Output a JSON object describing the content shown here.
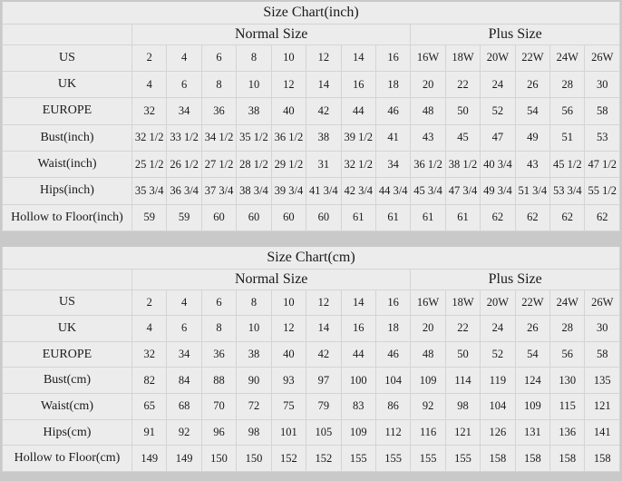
{
  "charts": [
    {
      "id": "chart-inch",
      "title": "Size Chart(inch)",
      "groups": [
        "Normal Size",
        "Plus Size"
      ],
      "rows": [
        {
          "label": "US",
          "values": [
            "2",
            "4",
            "6",
            "8",
            "10",
            "12",
            "14",
            "16",
            "16W",
            "18W",
            "20W",
            "22W",
            "24W",
            "26W"
          ]
        },
        {
          "label": "UK",
          "values": [
            "4",
            "6",
            "8",
            "10",
            "12",
            "14",
            "16",
            "18",
            "20",
            "22",
            "24",
            "26",
            "28",
            "30"
          ]
        },
        {
          "label": "EUROPE",
          "values": [
            "32",
            "34",
            "36",
            "38",
            "40",
            "42",
            "44",
            "46",
            "48",
            "50",
            "52",
            "54",
            "56",
            "58"
          ]
        },
        {
          "label": "Bust(inch)",
          "values": [
            "32 1/2",
            "33 1/2",
            "34 1/2",
            "35 1/2",
            "36 1/2",
            "38",
            "39 1/2",
            "41",
            "43",
            "45",
            "47",
            "49",
            "51",
            "53"
          ]
        },
        {
          "label": "Waist(inch)",
          "values": [
            "25 1/2",
            "26 1/2",
            "27 1/2",
            "28 1/2",
            "29 1/2",
            "31",
            "32 1/2",
            "34",
            "36 1/2",
            "38 1/2",
            "40 3/4",
            "43",
            "45 1/2",
            "47 1/2"
          ]
        },
        {
          "label": "Hips(inch)",
          "values": [
            "35 3/4",
            "36 3/4",
            "37 3/4",
            "38 3/4",
            "39 3/4",
            "41 3/4",
            "42 3/4",
            "44 3/4",
            "45 3/4",
            "47 3/4",
            "49 3/4",
            "51 3/4",
            "53 3/4",
            "55 1/2"
          ]
        },
        {
          "label": "Hollow to Floor(inch)",
          "values": [
            "59",
            "59",
            "60",
            "60",
            "60",
            "60",
            "61",
            "61",
            "61",
            "61",
            "62",
            "62",
            "62",
            "62"
          ]
        }
      ]
    },
    {
      "id": "chart-cm",
      "title": "Size Chart(cm)",
      "groups": [
        "Normal Size",
        "Plus Size"
      ],
      "rows": [
        {
          "label": "US",
          "values": [
            "2",
            "4",
            "6",
            "8",
            "10",
            "12",
            "14",
            "16",
            "16W",
            "18W",
            "20W",
            "22W",
            "24W",
            "26W"
          ]
        },
        {
          "label": "UK",
          "values": [
            "4",
            "6",
            "8",
            "10",
            "12",
            "14",
            "16",
            "18",
            "20",
            "22",
            "24",
            "26",
            "28",
            "30"
          ]
        },
        {
          "label": "EUROPE",
          "values": [
            "32",
            "34",
            "36",
            "38",
            "40",
            "42",
            "44",
            "46",
            "48",
            "50",
            "52",
            "54",
            "56",
            "58"
          ]
        },
        {
          "label": "Bust(cm)",
          "values": [
            "82",
            "84",
            "88",
            "90",
            "93",
            "97",
            "100",
            "104",
            "109",
            "114",
            "119",
            "124",
            "130",
            "135"
          ]
        },
        {
          "label": "Waist(cm)",
          "values": [
            "65",
            "68",
            "70",
            "72",
            "75",
            "79",
            "83",
            "86",
            "92",
            "98",
            "104",
            "109",
            "115",
            "121"
          ]
        },
        {
          "label": "Hips(cm)",
          "values": [
            "91",
            "92",
            "96",
            "98",
            "101",
            "105",
            "109",
            "112",
            "116",
            "121",
            "126",
            "131",
            "136",
            "141"
          ]
        },
        {
          "label": "Hollow to Floor(cm)",
          "values": [
            "149",
            "149",
            "150",
            "150",
            "152",
            "152",
            "155",
            "155",
            "155",
            "155",
            "158",
            "158",
            "158",
            "158"
          ]
        }
      ]
    }
  ]
}
